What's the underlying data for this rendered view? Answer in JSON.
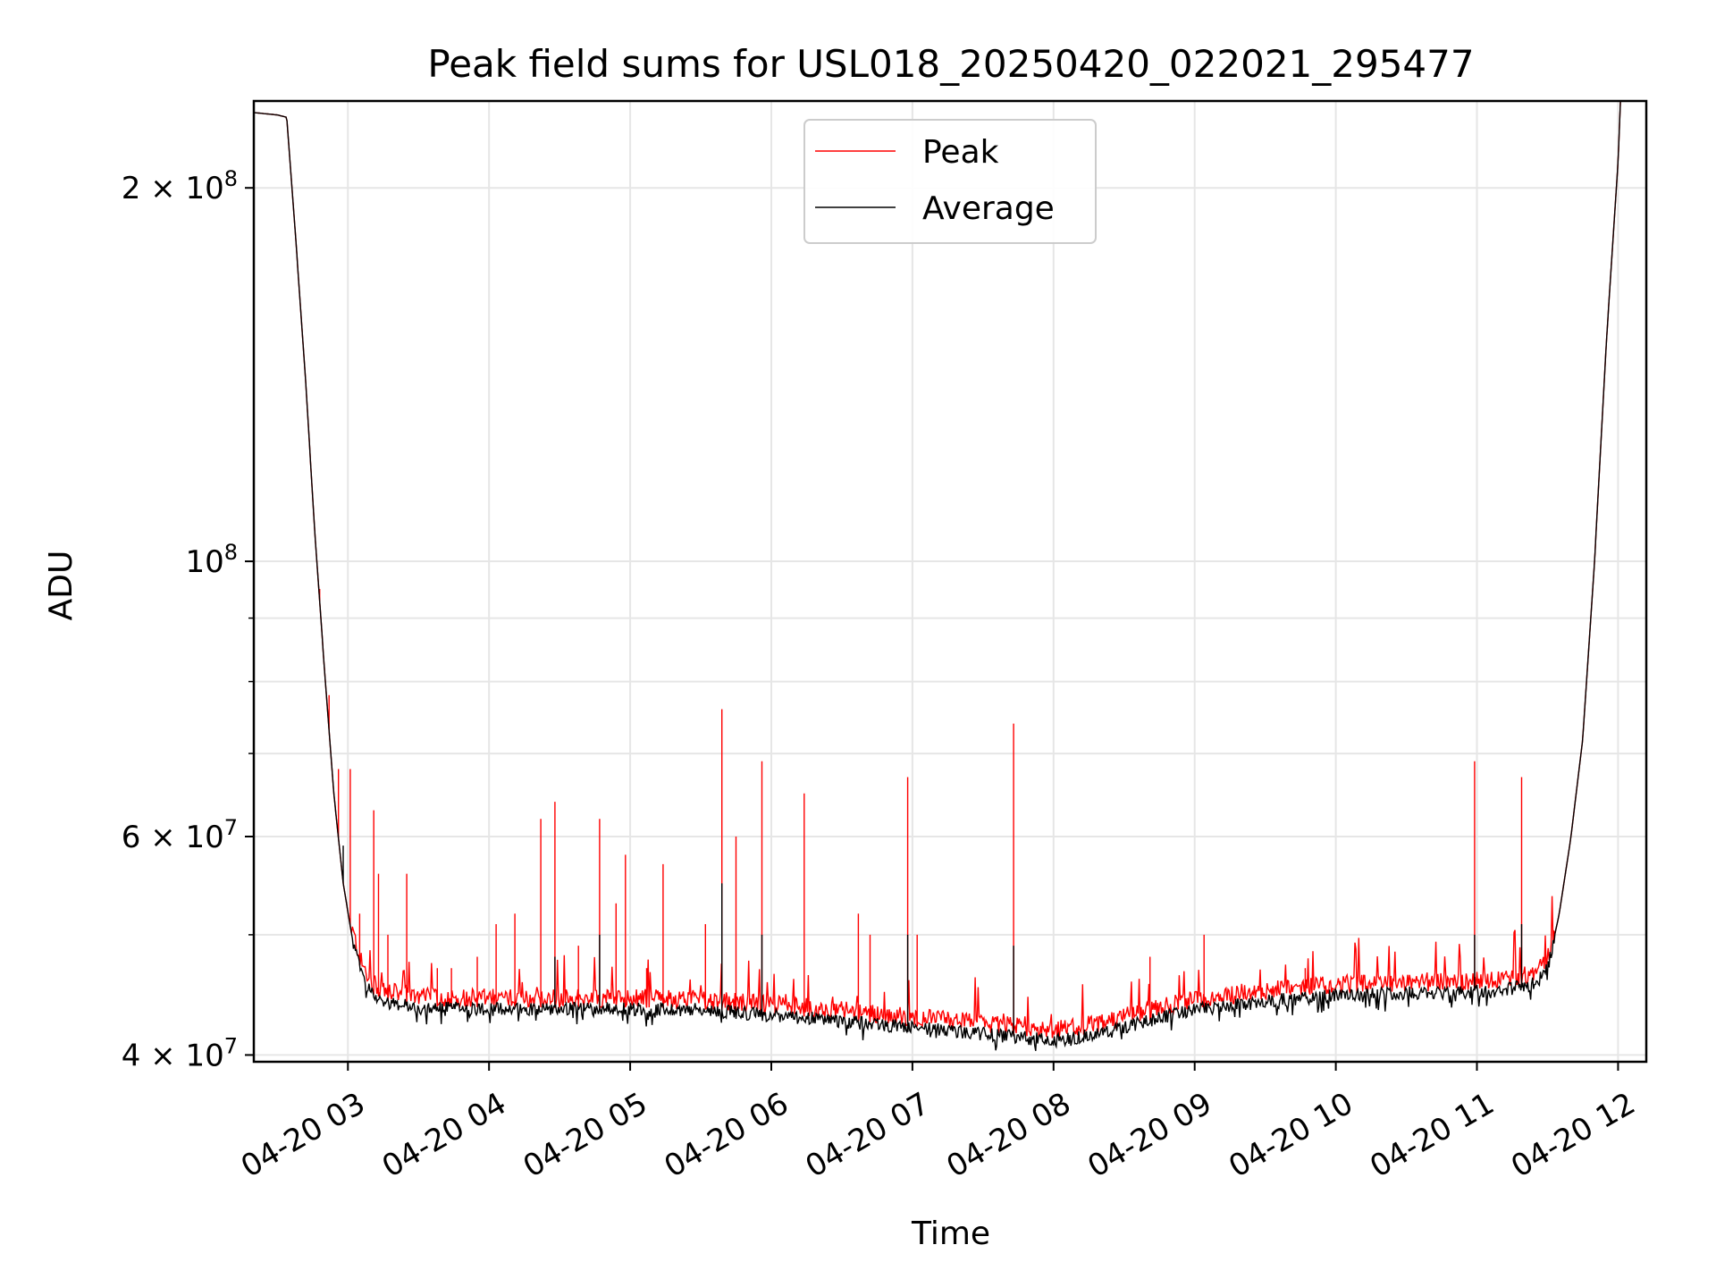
{
  "chart_data": {
    "type": "line",
    "title": "Peak field sums for USL018_20250420_022021_295477",
    "xlabel": "Time",
    "ylabel": "ADU",
    "y_scale": "log",
    "ylim": [
      39500000,
      235000000
    ],
    "xlim": [
      "2025-04-20 02:20",
      "2025-04-20 12:12"
    ],
    "grid": true,
    "legend_position": "upper center",
    "x_tick_labels": [
      "04-20 03",
      "04-20 04",
      "04-20 05",
      "04-20 06",
      "04-20 07",
      "04-20 08",
      "04-20 09",
      "04-20 10",
      "04-20 11",
      "04-20 12"
    ],
    "x_ticks": [
      "2025-04-20 03:00",
      "2025-04-20 04:00",
      "2025-04-20 05:00",
      "2025-04-20 06:00",
      "2025-04-20 07:00",
      "2025-04-20 08:00",
      "2025-04-20 09:00",
      "2025-04-20 10:00",
      "2025-04-20 11:00",
      "2025-04-20 12:00"
    ],
    "y_tick_labels": [
      {
        "value": 40000000,
        "mantissa": "4",
        "exponent": "7"
      },
      {
        "value": 60000000,
        "mantissa": "6",
        "exponent": "7"
      },
      {
        "value": 100000000,
        "mantissa": "",
        "exponent": "8"
      },
      {
        "value": 200000000,
        "mantissa": "2",
        "exponent": "8"
      }
    ],
    "y_minor_ticks": [
      50000000,
      70000000,
      80000000,
      90000000
    ],
    "series": [
      {
        "name": "Peak",
        "color": "#ff0000",
        "baseline": [
          [
            "2025-04-20 02:20",
            230000000
          ],
          [
            "2025-04-20 02:30",
            229000000
          ],
          [
            "2025-04-20 02:34",
            228000000
          ],
          [
            "2025-04-20 02:38",
            180000000
          ],
          [
            "2025-04-20 02:42",
            140000000
          ],
          [
            "2025-04-20 02:46",
            105000000
          ],
          [
            "2025-04-20 02:50",
            82000000
          ],
          [
            "2025-04-20 02:54",
            65000000
          ],
          [
            "2025-04-20 02:58",
            55000000
          ],
          [
            "2025-04-20 03:02",
            49500000
          ],
          [
            "2025-04-20 03:06",
            46500000
          ],
          [
            "2025-04-20 03:10",
            45000000
          ],
          [
            "2025-04-20 03:15",
            44300000
          ],
          [
            "2025-04-20 03:30",
            43800000
          ],
          [
            "2025-04-20 04:00",
            43700000
          ],
          [
            "2025-04-20 04:30",
            43700000
          ],
          [
            "2025-04-20 05:00",
            43700000
          ],
          [
            "2025-04-20 05:30",
            43600000
          ],
          [
            "2025-04-20 06:00",
            43200000
          ],
          [
            "2025-04-20 06:30",
            42700000
          ],
          [
            "2025-04-20 07:00",
            42200000
          ],
          [
            "2025-04-20 07:30",
            41700000
          ],
          [
            "2025-04-20 08:00",
            41200000
          ],
          [
            "2025-04-20 08:20",
            41700000
          ],
          [
            "2025-04-20 08:40",
            42700000
          ],
          [
            "2025-04-20 09:00",
            43600000
          ],
          [
            "2025-04-20 09:30",
            44300000
          ],
          [
            "2025-04-20 10:00",
            44800000
          ],
          [
            "2025-04-20 10:30",
            45000000
          ],
          [
            "2025-04-20 10:50",
            45000000
          ],
          [
            "2025-04-20 11:10",
            45200000
          ],
          [
            "2025-04-20 11:25",
            45800000
          ],
          [
            "2025-04-20 11:30",
            47000000
          ],
          [
            "2025-04-20 11:35",
            52000000
          ],
          [
            "2025-04-20 11:40",
            60000000
          ],
          [
            "2025-04-20 11:45",
            72000000
          ],
          [
            "2025-04-20 11:50",
            100000000
          ],
          [
            "2025-04-20 11:55",
            150000000
          ],
          [
            "2025-04-20 12:00",
            210000000
          ],
          [
            "2025-04-20 12:01",
            235000000
          ]
        ],
        "spikes": [
          [
            "2025-04-20 02:48",
            95000000
          ],
          [
            "2025-04-20 02:50",
            82000000
          ],
          [
            "2025-04-20 02:52",
            78000000
          ],
          [
            "2025-04-20 02:56",
            68000000
          ],
          [
            "2025-04-20 03:01",
            68000000
          ],
          [
            "2025-04-20 03:05",
            52000000
          ],
          [
            "2025-04-20 03:11",
            63000000
          ],
          [
            "2025-04-20 03:13",
            56000000
          ],
          [
            "2025-04-20 03:17",
            50000000
          ],
          [
            "2025-04-20 03:25",
            56000000
          ],
          [
            "2025-04-20 03:38",
            47000000
          ],
          [
            "2025-04-20 03:44",
            47000000
          ],
          [
            "2025-04-20 03:55",
            48000000
          ],
          [
            "2025-04-20 04:03",
            51000000
          ],
          [
            "2025-04-20 04:11",
            52000000
          ],
          [
            "2025-04-20 04:22",
            62000000
          ],
          [
            "2025-04-20 04:28",
            64000000
          ],
          [
            "2025-04-20 04:38",
            49000000
          ],
          [
            "2025-04-20 04:47",
            62000000
          ],
          [
            "2025-04-20 04:54",
            53000000
          ],
          [
            "2025-04-20 04:58",
            58000000
          ],
          [
            "2025-04-20 05:07",
            47000000
          ],
          [
            "2025-04-20 05:14",
            57000000
          ],
          [
            "2025-04-20 05:32",
            51000000
          ],
          [
            "2025-04-20 05:39",
            76000000
          ],
          [
            "2025-04-20 05:45",
            60000000
          ],
          [
            "2025-04-20 05:56",
            69000000
          ],
          [
            "2025-04-20 06:14",
            65000000
          ],
          [
            "2025-04-20 06:37",
            52000000
          ],
          [
            "2025-04-20 06:42",
            50000000
          ],
          [
            "2025-04-20 06:58",
            67000000
          ],
          [
            "2025-04-20 07:02",
            50000000
          ],
          [
            "2025-04-20 07:43",
            74000000
          ],
          [
            "2025-04-20 08:41",
            48000000
          ],
          [
            "2025-04-20 09:04",
            50000000
          ],
          [
            "2025-04-20 09:47",
            47000000
          ],
          [
            "2025-04-20 10:59",
            69000000
          ],
          [
            "2025-04-20 11:19",
            67000000
          ]
        ]
      },
      {
        "name": "Average",
        "color": "#000000",
        "description_of_values": "tracks Peak baseline; transient spikes reach lower values",
        "spikes": [
          [
            "2025-04-20 02:58",
            59000000
          ],
          [
            "2025-04-20 04:28",
            48000000
          ],
          [
            "2025-04-20 04:47",
            50000000
          ],
          [
            "2025-04-20 05:39",
            55000000
          ],
          [
            "2025-04-20 05:56",
            50000000
          ],
          [
            "2025-04-20 06:58",
            50000000
          ],
          [
            "2025-04-20 07:43",
            49000000
          ],
          [
            "2025-04-20 10:59",
            50000000
          ],
          [
            "2025-04-20 11:19",
            51000000
          ]
        ]
      }
    ]
  }
}
